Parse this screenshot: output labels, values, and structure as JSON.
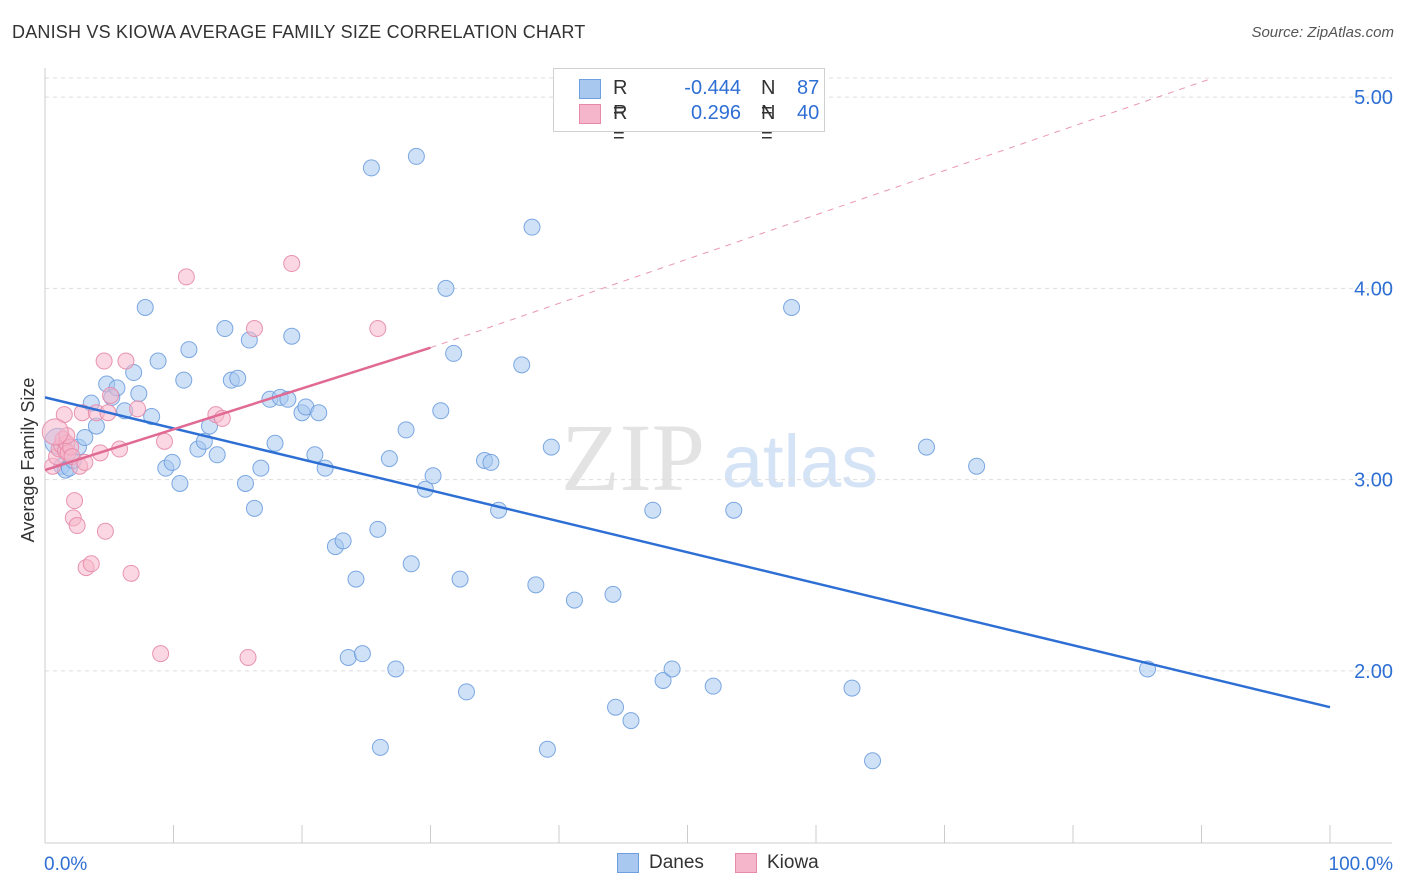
{
  "title": "DANISH VS KIOWA AVERAGE FAMILY SIZE CORRELATION CHART",
  "source": "Source: ZipAtlas.com",
  "watermark": {
    "zip": "ZIP",
    "atlas": "atlas"
  },
  "legend": {
    "rows": [
      {
        "r_label": "R =",
        "r_value": "-0.444",
        "n_label": "N =",
        "n_value": "87"
      },
      {
        "r_label": "R =",
        "r_value": "0.296",
        "n_label": "N =",
        "n_value": "40"
      }
    ]
  },
  "chart_data": {
    "type": "scatter",
    "title": "DANISH VS KIOWA AVERAGE FAMILY SIZE CORRELATION CHART",
    "xlabel": "",
    "ylabel": "Average Family Size",
    "xlim": [
      0,
      100
    ],
    "ylim": [
      1.1,
      5.1
    ],
    "x_tick_labels": [
      "0.0%",
      "100.0%"
    ],
    "y_ticks": [
      2.0,
      3.0,
      4.0,
      5.0
    ],
    "y_tick_labels": [
      "2.00",
      "3.00",
      "4.00",
      "5.00"
    ],
    "colors": {
      "danes_fill": "#a8c8f0",
      "danes_stroke": "#6f9fde",
      "danes_line": "#2e6fd4",
      "kiowa_fill": "#f5b6cb",
      "kiowa_stroke": "#e68aa8",
      "kiowa_line": "#e06a94",
      "tick_label": "#2e6fd4",
      "grid": "#dddddd"
    },
    "series": [
      {
        "name": "Danes",
        "trend": {
          "x0": 0,
          "y0": 3.43,
          "x1": 100,
          "y1": 1.81
        },
        "points": [
          [
            1.3,
            3.07
          ],
          [
            1.6,
            3.05
          ],
          [
            1.9,
            3.06
          ],
          [
            2.2,
            3.1
          ],
          [
            2.6,
            3.17
          ],
          [
            3.1,
            3.22
          ],
          [
            3.6,
            3.4
          ],
          [
            4.0,
            3.28
          ],
          [
            4.8,
            3.5
          ],
          [
            5.2,
            3.43
          ],
          [
            5.6,
            3.48
          ],
          [
            6.2,
            3.36
          ],
          [
            6.9,
            3.56
          ],
          [
            7.3,
            3.45
          ],
          [
            7.8,
            3.9
          ],
          [
            8.3,
            3.33
          ],
          [
            8.8,
            3.62
          ],
          [
            9.4,
            3.06
          ],
          [
            9.9,
            3.09
          ],
          [
            10.5,
            2.98
          ],
          [
            10.8,
            3.52
          ],
          [
            11.2,
            3.68
          ],
          [
            11.9,
            3.16
          ],
          [
            12.4,
            3.2
          ],
          [
            12.8,
            3.28
          ],
          [
            13.4,
            3.13
          ],
          [
            14.0,
            3.79
          ],
          [
            14.5,
            3.52
          ],
          [
            15.0,
            3.53
          ],
          [
            15.6,
            2.98
          ],
          [
            15.9,
            3.73
          ],
          [
            16.3,
            2.85
          ],
          [
            16.8,
            3.06
          ],
          [
            17.5,
            3.42
          ],
          [
            17.9,
            3.19
          ],
          [
            18.3,
            3.43
          ],
          [
            18.9,
            3.42
          ],
          [
            19.2,
            3.75
          ],
          [
            20.0,
            3.35
          ],
          [
            20.3,
            3.38
          ],
          [
            21.0,
            3.13
          ],
          [
            21.3,
            3.35
          ],
          [
            21.8,
            3.06
          ],
          [
            22.6,
            2.65
          ],
          [
            23.2,
            2.68
          ],
          [
            23.6,
            2.07
          ],
          [
            24.2,
            2.48
          ],
          [
            24.7,
            2.09
          ],
          [
            25.4,
            4.63
          ],
          [
            25.9,
            2.74
          ],
          [
            26.1,
            1.6
          ],
          [
            26.8,
            3.11
          ],
          [
            27.3,
            2.01
          ],
          [
            28.1,
            3.26
          ],
          [
            28.5,
            2.56
          ],
          [
            28.9,
            4.69
          ],
          [
            29.6,
            2.95
          ],
          [
            30.2,
            3.02
          ],
          [
            30.8,
            3.36
          ],
          [
            31.2,
            4.0
          ],
          [
            31.8,
            3.66
          ],
          [
            32.3,
            2.48
          ],
          [
            32.8,
            1.89
          ],
          [
            34.2,
            3.1
          ],
          [
            34.7,
            3.09
          ],
          [
            35.3,
            2.84
          ],
          [
            37.1,
            3.6
          ],
          [
            37.9,
            4.32
          ],
          [
            38.2,
            2.45
          ],
          [
            39.1,
            1.59
          ],
          [
            39.4,
            3.17
          ],
          [
            41.2,
            2.37
          ],
          [
            44.2,
            2.4
          ],
          [
            44.4,
            1.81
          ],
          [
            45.6,
            1.74
          ],
          [
            47.3,
            2.84
          ],
          [
            48.1,
            1.95
          ],
          [
            48.8,
            2.01
          ],
          [
            52.0,
            1.92
          ],
          [
            53.6,
            2.84
          ],
          [
            58.1,
            3.9
          ],
          [
            62.8,
            1.91
          ],
          [
            64.4,
            1.53
          ],
          [
            68.6,
            3.17
          ],
          [
            72.5,
            3.07
          ],
          [
            85.8,
            2.01
          ],
          [
            1.0,
            3.2
          ]
        ]
      },
      {
        "name": "Kiowa",
        "trend": {
          "x0": 0,
          "y0": 3.05,
          "x1": 30,
          "y1": 3.69,
          "dash_to_x": 100,
          "dash_to_y": 5.14
        },
        "points": [
          [
            0.6,
            3.07
          ],
          [
            0.9,
            3.12
          ],
          [
            1.1,
            3.16
          ],
          [
            1.3,
            3.18
          ],
          [
            1.4,
            3.21
          ],
          [
            1.6,
            3.15
          ],
          [
            1.7,
            3.19
          ],
          [
            1.8,
            3.14
          ],
          [
            2.0,
            3.17
          ],
          [
            2.1,
            3.12
          ],
          [
            1.5,
            3.34
          ],
          [
            1.7,
            3.23
          ],
          [
            2.2,
            2.8
          ],
          [
            2.3,
            2.89
          ],
          [
            2.5,
            2.76
          ],
          [
            2.7,
            3.07
          ],
          [
            2.9,
            3.35
          ],
          [
            3.1,
            3.09
          ],
          [
            3.2,
            2.54
          ],
          [
            3.6,
            2.56
          ],
          [
            4.0,
            3.35
          ],
          [
            4.3,
            3.14
          ],
          [
            4.6,
            3.62
          ],
          [
            4.7,
            2.73
          ],
          [
            4.9,
            3.35
          ],
          [
            5.1,
            3.44
          ],
          [
            5.8,
            3.16
          ],
          [
            6.3,
            3.62
          ],
          [
            6.7,
            2.51
          ],
          [
            7.2,
            3.37
          ],
          [
            9.0,
            2.09
          ],
          [
            9.3,
            3.2
          ],
          [
            11.0,
            4.06
          ],
          [
            13.3,
            3.34
          ],
          [
            13.8,
            3.32
          ],
          [
            15.8,
            2.07
          ],
          [
            16.3,
            3.79
          ],
          [
            19.2,
            4.13
          ],
          [
            25.9,
            3.79
          ],
          [
            0.8,
            3.25
          ]
        ]
      }
    ]
  },
  "bottom_legend": [
    {
      "label": "Danes"
    },
    {
      "label": "Kiowa"
    }
  ]
}
